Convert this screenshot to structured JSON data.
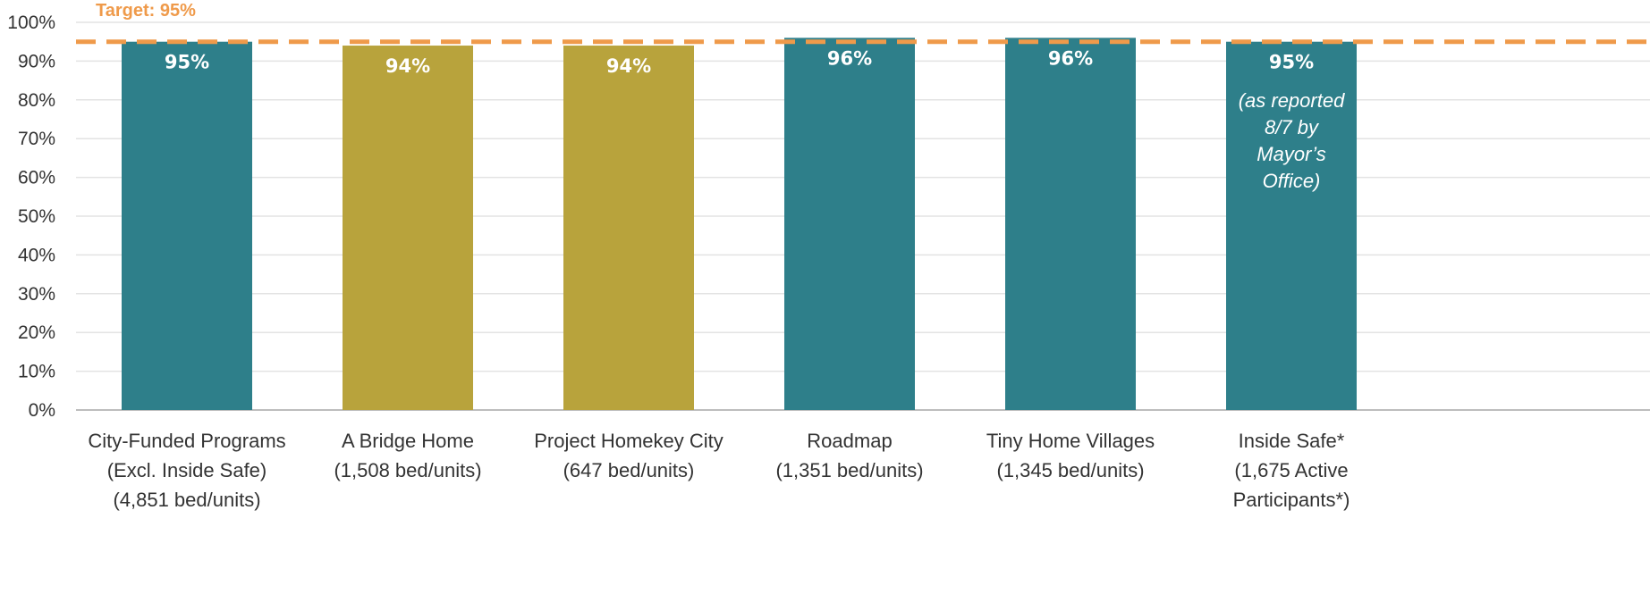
{
  "chart_data": {
    "type": "bar",
    "categories": [
      [
        "City-Funded Programs",
        "(Excl. Inside Safe)",
        "(4,851 bed/units)"
      ],
      [
        "A Bridge Home",
        "(1,508 bed/units)"
      ],
      [
        "Project Homekey City",
        "(647 bed/units)"
      ],
      [
        "Roadmap",
        "(1,351 bed/units)"
      ],
      [
        "Tiny Home Villages",
        "(1,345 bed/units)"
      ],
      [
        "Inside Safe*",
        "(1,675 Active",
        "Participants*)"
      ]
    ],
    "values": [
      95,
      94,
      94,
      96,
      96,
      95
    ],
    "data_labels": [
      "95%",
      "94%",
      "94%",
      "96%",
      "96%",
      "95%"
    ],
    "bar_colors": [
      "#2e7f8a",
      "#b8a33c",
      "#b8a33c",
      "#2e7f8a",
      "#2e7f8a",
      "#2e7f8a"
    ],
    "ylim": [
      0,
      100
    ],
    "yticks": [
      "0%",
      "10%",
      "20%",
      "30%",
      "40%",
      "50%",
      "60%",
      "70%",
      "80%",
      "90%",
      "100%"
    ],
    "grid": true,
    "target": {
      "label": "Target: 95%",
      "value": 95,
      "color": "#ef9a4a"
    },
    "annotation": {
      "category_index": 5,
      "lines": [
        "(as reported",
        "8/7 by",
        "Mayor’s",
        "Office)"
      ]
    }
  }
}
